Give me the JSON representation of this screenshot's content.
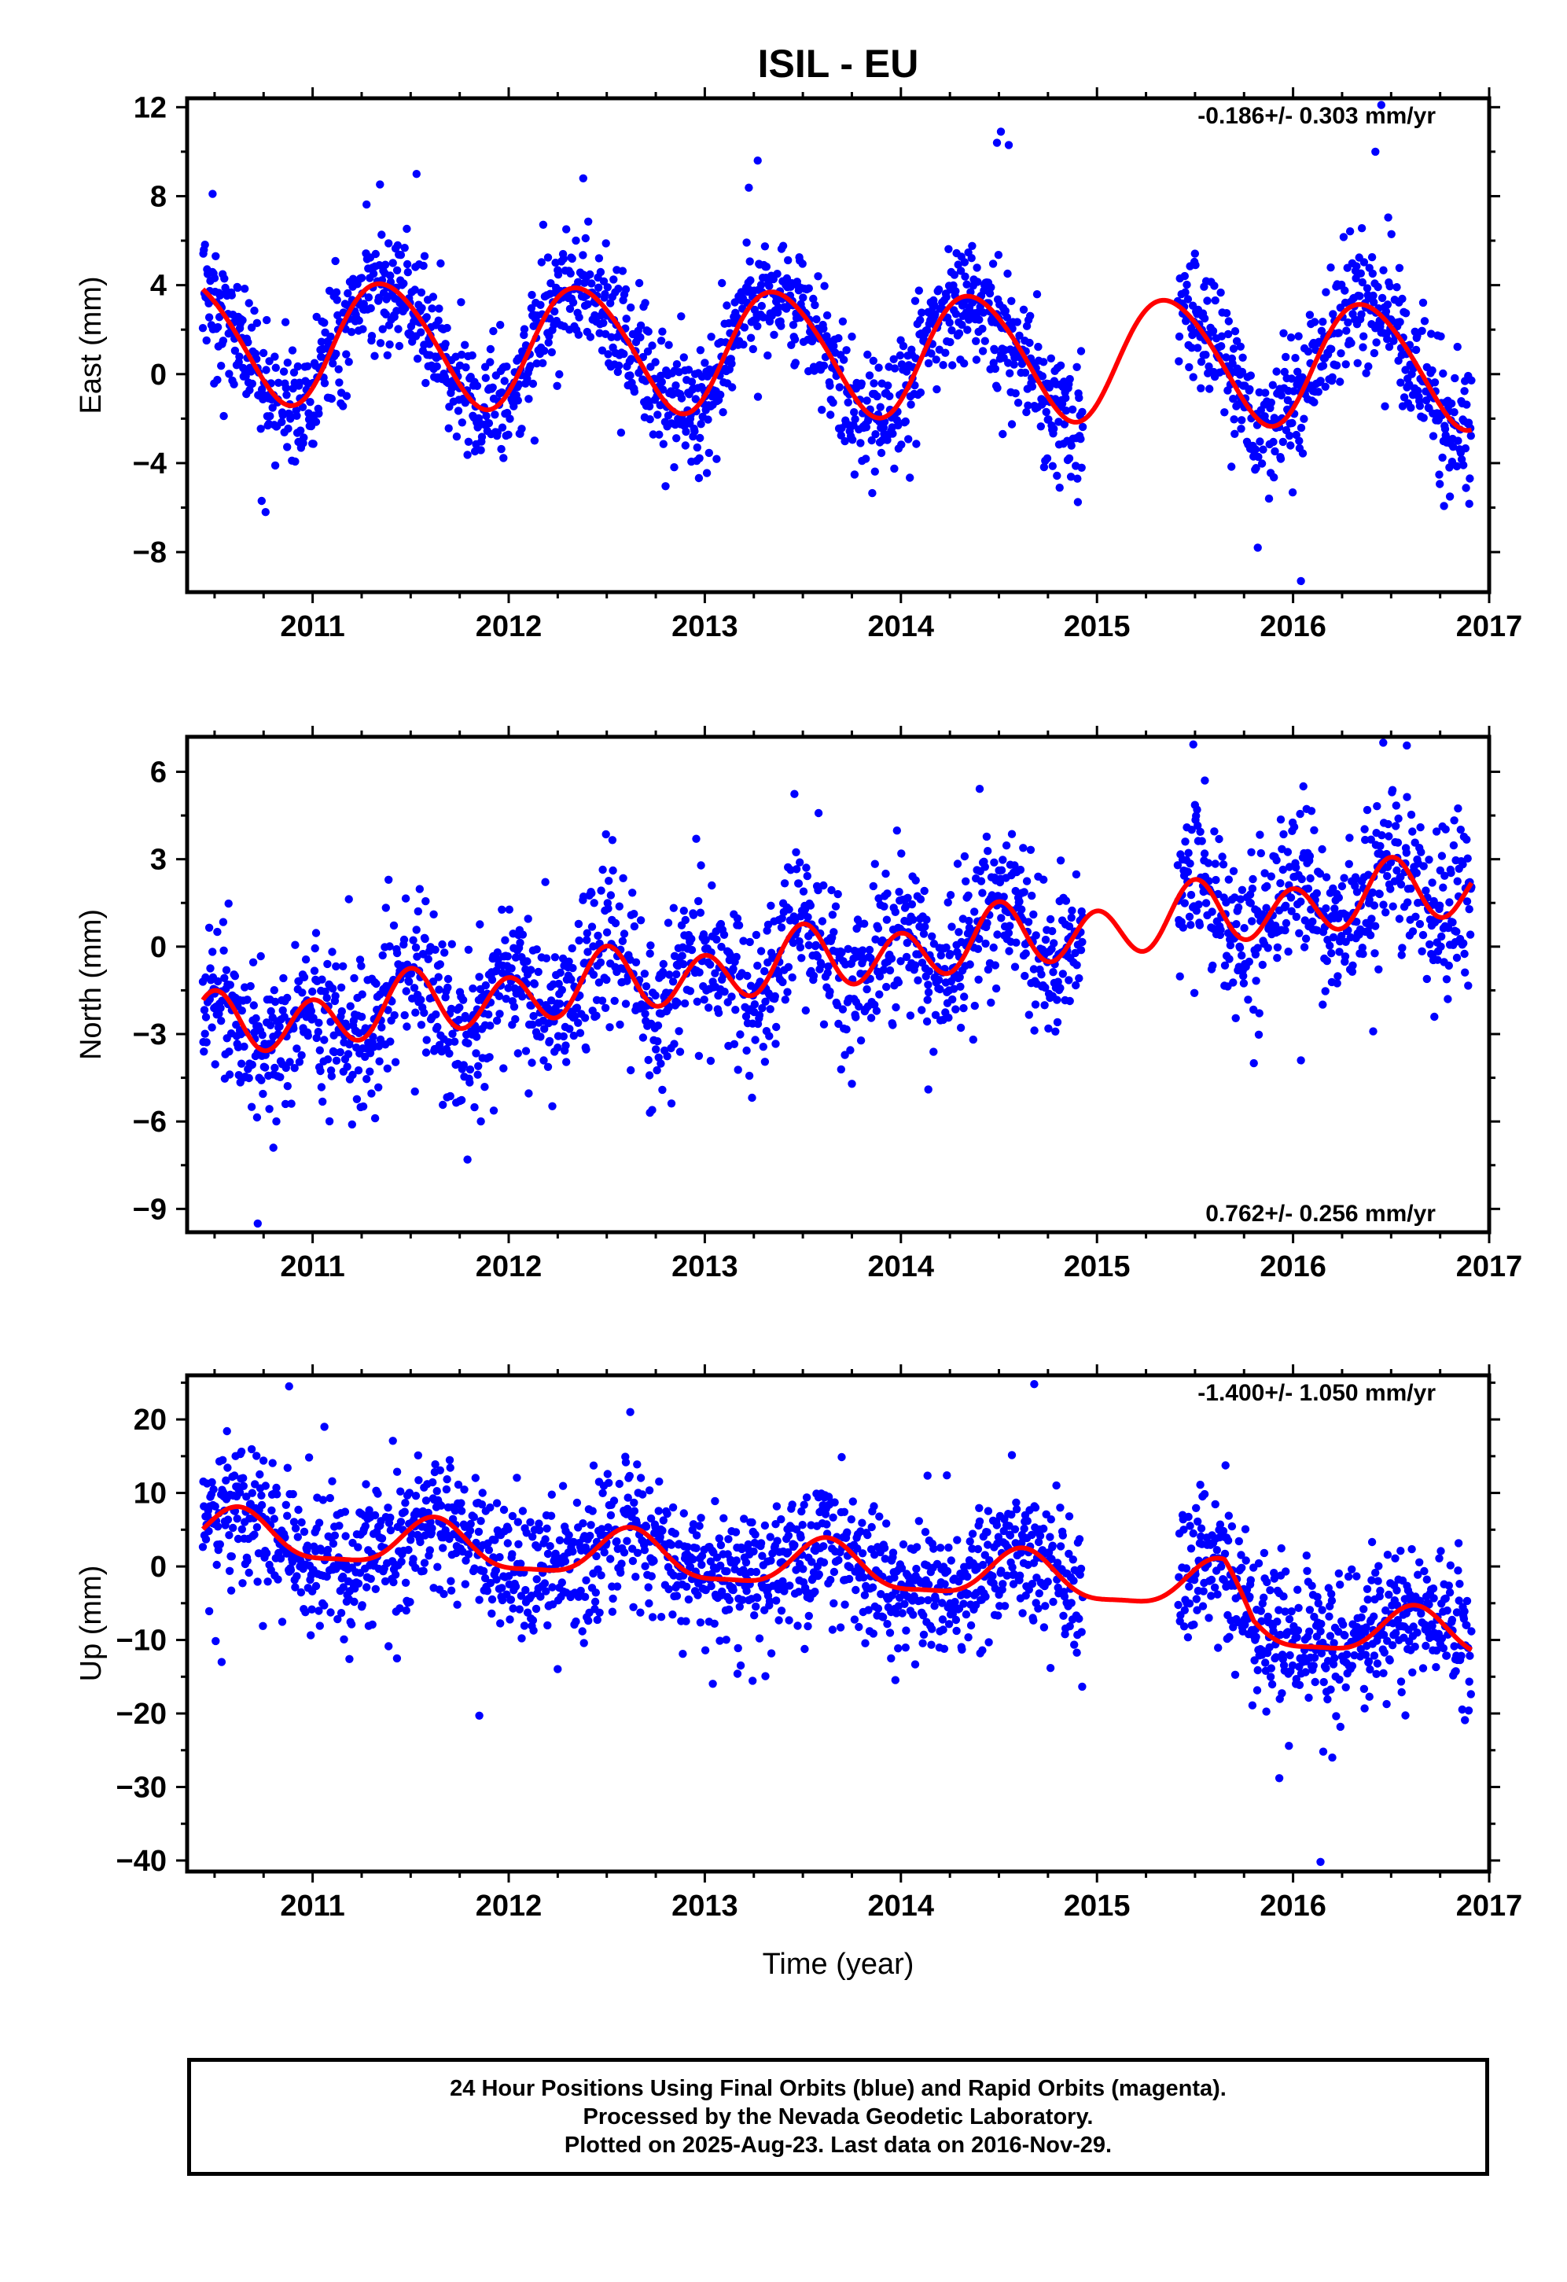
{
  "title": "ISIL - EU",
  "colors": {
    "points": "#0000ff",
    "fit": "#ff0000",
    "axis": "#000000"
  },
  "chart_data": [
    {
      "type": "scatter",
      "ylabel": "East (mm)",
      "xlabel": "",
      "xlim": [
        2010.36,
        2017.0
      ],
      "ylim": [
        -9.8,
        12.4
      ],
      "xticks": [
        2011,
        2012,
        2013,
        2014,
        2015,
        2016,
        2017
      ],
      "yticks": [
        -8,
        -4,
        0,
        4,
        8,
        12
      ],
      "ytick_labels": [
        "−8",
        "−4",
        "0",
        "4",
        "8",
        "12"
      ],
      "rate_label": "-0.186+/- 0.303 mm/yr",
      "rate_position": "top-right",
      "data_gap": [
        2014.93,
        2015.41
      ],
      "series": [
        {
          "kind": "points",
          "color": "#0000ff",
          "data_start": 2010.44,
          "data_end": 2016.91,
          "scatter": 1.45
        },
        {
          "kind": "fit",
          "color": "#ff0000",
          "intercept": 1.1,
          "rate": -0.186,
          "ref_year": 2013.0,
          "seasonal": [
            {
              "period": 1.0,
              "amplitude": 2.75,
              "peak_year": 2011.37
            },
            {
              "period": 0.5,
              "amplitude": 0.25,
              "peak_year": 2011.2
            }
          ]
        }
      ],
      "outliers": [
        [
          2010.49,
          8.1
        ],
        [
          2010.76,
          -6.2
        ],
        [
          2010.74,
          -5.7
        ],
        [
          2011.53,
          9.0
        ],
        [
          2012.38,
          8.8
        ],
        [
          2013.27,
          9.6
        ],
        [
          2014.51,
          10.9
        ],
        [
          2014.55,
          10.3
        ],
        [
          2014.49,
          10.4
        ],
        [
          2015.82,
          -7.8
        ],
        [
          2016.04,
          -9.3
        ],
        [
          2016.45,
          12.1
        ],
        [
          2016.42,
          10.0
        ]
      ]
    },
    {
      "type": "scatter",
      "ylabel": "North (mm)",
      "xlabel": "",
      "xlim": [
        2010.36,
        2017.0
      ],
      "ylim": [
        -9.8,
        7.2
      ],
      "xticks": [
        2011,
        2012,
        2013,
        2014,
        2015,
        2016,
        2017
      ],
      "yticks": [
        -9,
        -6,
        -3,
        0,
        3,
        6
      ],
      "ytick_labels": [
        "−9",
        "−6",
        "−3",
        "0",
        "3",
        "6"
      ],
      "rate_label": "0.762+/- 0.256 mm/yr",
      "rate_position": "bottom-right",
      "data_gap": [
        2014.93,
        2015.41
      ],
      "series": [
        {
          "kind": "points",
          "color": "#0000ff",
          "data_start": 2010.44,
          "data_end": 2016.91,
          "scatter": 1.35
        },
        {
          "kind": "fit",
          "color": "#ff0000",
          "intercept": -0.9,
          "rate": 0.762,
          "ref_year": 2013.0,
          "seasonal": [
            {
              "period": 1.0,
              "amplitude": 0.35,
              "peak_year": 2011.5
            },
            {
              "period": 0.5,
              "amplitude": 0.95,
              "peak_year": 2011.0
            }
          ]
        }
      ],
      "outliers": [
        [
          2010.72,
          -9.5
        ],
        [
          2010.8,
          -6.9
        ],
        [
          2011.75,
          -5.3
        ],
        [
          2012.72,
          -5.7
        ],
        [
          2014.14,
          -4.9
        ],
        [
          2016.46,
          7.0
        ],
        [
          2016.58,
          6.9
        ],
        [
          2015.55,
          5.7
        ],
        [
          2015.8,
          -4.0
        ],
        [
          2016.04,
          -3.9
        ]
      ]
    },
    {
      "type": "scatter",
      "ylabel": "Up (mm)",
      "xlabel": "Time (year)",
      "xlim": [
        2010.36,
        2017.0
      ],
      "ylim": [
        -41.5,
        26.0
      ],
      "xticks": [
        2011,
        2012,
        2013,
        2014,
        2015,
        2016,
        2017
      ],
      "yticks": [
        -40,
        -30,
        -20,
        -10,
        0,
        10,
        20
      ],
      "ytick_labels": [
        "−40",
        "−30",
        "−20",
        "−10",
        "0",
        "10",
        "20"
      ],
      "rate_label": "-1.400+/- 1.050 mm/yr",
      "rate_position": "top-right",
      "data_gap": [
        2014.93,
        2015.41
      ],
      "series": [
        {
          "kind": "points",
          "color": "#0000ff",
          "data_start": 2010.44,
          "data_end": 2016.91,
          "scatter": 4.8
        },
        {
          "kind": "fit",
          "color": "#ff0000",
          "intercept": 0.7,
          "rate": -1.4,
          "ref_year": 2013.0,
          "seasonal": [
            {
              "period": 1.0,
              "amplitude": 3.2,
              "peak_year": 2011.62
            },
            {
              "period": 0.5,
              "amplitude": 0.9,
              "peak_year": 2011.62
            }
          ],
          "extra_offset_after": [
            2015.65,
            -5.0
          ]
        }
      ],
      "outliers": [
        [
          2010.88,
          24.5
        ],
        [
          2011.06,
          19.0
        ],
        [
          2011.85,
          -20.3
        ],
        [
          2012.62,
          21.0
        ],
        [
          2014.68,
          24.8
        ],
        [
          2015.93,
          -28.8
        ],
        [
          2016.14,
          -40.2
        ],
        [
          2016.2,
          -26.0
        ],
        [
          2013.95,
          -12.5
        ],
        [
          2011.43,
          -12.5
        ]
      ]
    }
  ],
  "footer": {
    "line1": "24 Hour Positions Using Final Orbits (blue) and Rapid Orbits (magenta).",
    "line2": "Processed by the Nevada Geodetic Laboratory.",
    "line3": "Plotted on 2025-Aug-23. Last data on 2016-Nov-29."
  }
}
